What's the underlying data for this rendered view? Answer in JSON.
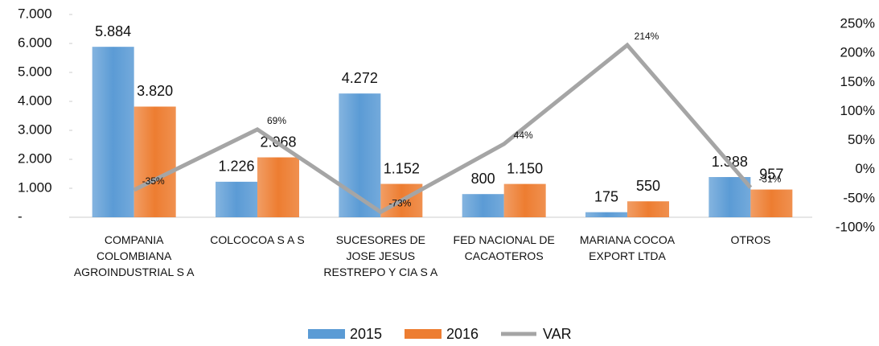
{
  "chart_data": {
    "type": "bar",
    "categories": [
      "COMPANIA COLOMBIANA AGROINDUSTRIAL S A",
      "COLCOCOA S A S",
      "SUCESORES DE JOSE JESUS RESTREPO Y CIA S A",
      "FED NACIONAL DE CACAOTEROS",
      "MARIANA COCOA EXPORT LTDA",
      "OTROS"
    ],
    "series": [
      {
        "name": "2015",
        "type": "bar",
        "color": "#5b9bd5",
        "values": [
          5884,
          1226,
          4272,
          800,
          175,
          1388
        ],
        "value_labels": [
          "5.884",
          "1.226",
          "4.272",
          "800",
          "175",
          "1.388"
        ]
      },
      {
        "name": "2016",
        "type": "bar",
        "color": "#ed7d31",
        "values": [
          3820,
          2068,
          1152,
          1150,
          550,
          957
        ],
        "value_labels": [
          "3.820",
          "2.068",
          "1.152",
          "1.150",
          "550",
          "957"
        ]
      },
      {
        "name": "VAR",
        "type": "line",
        "axis": "y2",
        "color": "#a5a5a5",
        "values": [
          -35,
          69,
          -73,
          44,
          214,
          -31
        ],
        "value_labels": [
          "-35%",
          "69%",
          "-73%",
          "44%",
          "214%",
          "-31%"
        ]
      }
    ],
    "ylim": [
      0,
      7000
    ],
    "yticks": [
      {
        "value": 0,
        "label": "-"
      },
      {
        "value": 1000,
        "label": "1.000"
      },
      {
        "value": 2000,
        "label": "2.000"
      },
      {
        "value": 3000,
        "label": "3.000"
      },
      {
        "value": 4000,
        "label": "4.000"
      },
      {
        "value": 5000,
        "label": "5.000"
      },
      {
        "value": 6000,
        "label": "6.000"
      },
      {
        "value": 7000,
        "label": "7.000"
      }
    ],
    "y2lim": [
      -100,
      250
    ],
    "y2ticks": [
      {
        "value": -100,
        "label": "-100%"
      },
      {
        "value": -50,
        "label": "-50%"
      },
      {
        "value": 0,
        "label": "0%"
      },
      {
        "value": 50,
        "label": "50%"
      },
      {
        "value": 100,
        "label": "100%"
      },
      {
        "value": 150,
        "label": "150%"
      },
      {
        "value": 200,
        "label": "200%"
      },
      {
        "value": 250,
        "label": "250%"
      }
    ],
    "legend": "bottom"
  }
}
